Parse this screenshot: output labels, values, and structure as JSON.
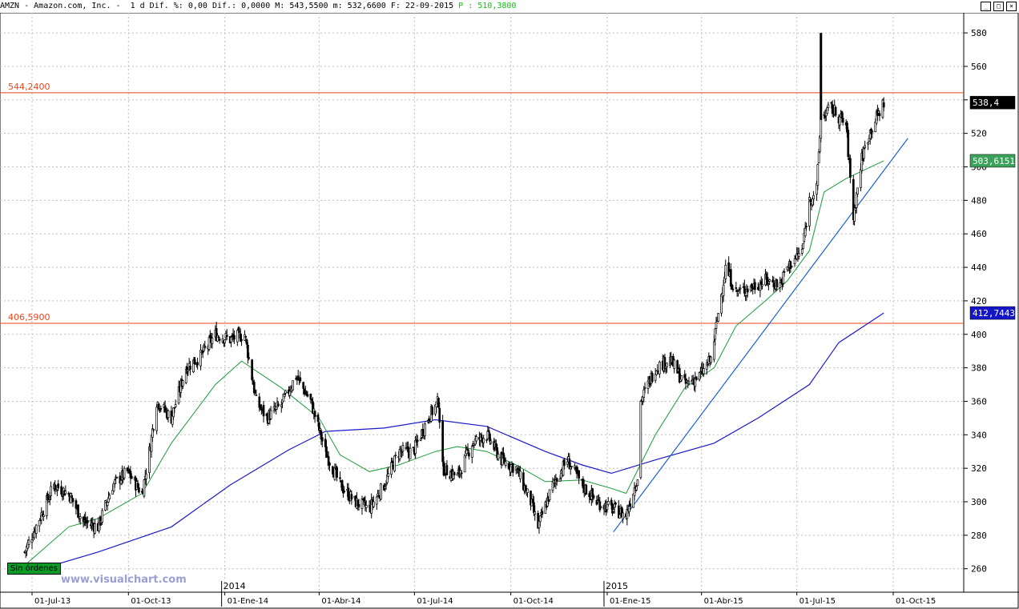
{
  "header": {
    "symbol": "AMZN",
    "name": "Amazon.com, Inc.",
    "period": "1 d",
    "dif_pct_label": "Dif. %:",
    "dif_pct": "0,00",
    "dif_label": "Dif.:",
    "dif": "0,0000",
    "max_label": "M:",
    "max": "543,5500",
    "min_label": "m:",
    "min": "532,6600",
    "date_label": "F:",
    "date": "22-09-2015",
    "price_label": "P :",
    "price": "510,3800"
  },
  "watermark": "www.visualchart.com",
  "order_status": "Sin órdenes",
  "colors": {
    "candles": "#000000",
    "ma_short": "#1a9b3a",
    "ma_long": "#1a1acd",
    "trendline": "#1a5fd6",
    "hline": "#e8461e",
    "grid": "#bfbfbf",
    "badge_last": "#000000",
    "badge_ma_short": "#3aa25a",
    "badge_ma_long": "#1414c8",
    "header_price": "#00cc00"
  },
  "chart_data": {
    "type": "candlestick",
    "x_ticks": [
      "01-Jul-13",
      "01-Oct-13",
      "01-Ene-14",
      "01-Abr-14",
      "01-Jul-14",
      "01-Oct-14",
      "01-Ene-15",
      "01-Abr-15",
      "01-Jul-15",
      "01-Oct-15"
    ],
    "year_markers": [
      "2014",
      "2015"
    ],
    "y_ticks": [
      260,
      280,
      300,
      320,
      340,
      360,
      380,
      400,
      420,
      440,
      460,
      480,
      500,
      520,
      540,
      560,
      580
    ],
    "ylim": [
      246,
      592
    ],
    "grid": true,
    "horizontal_lines": [
      {
        "label": "544,2400",
        "value": 544.24
      },
      {
        "label": "406,5900",
        "value": 406.59
      }
    ],
    "badges": [
      {
        "label": "538,4",
        "value": 538.4,
        "kind": "last"
      },
      {
        "label": "503,6151",
        "value": 503.6151,
        "kind": "ma_short"
      },
      {
        "label": "412,7443",
        "value": 412.7443,
        "kind": "ma_long"
      }
    ],
    "price_path": [
      [
        "2013-06-24",
        270
      ],
      [
        "2013-07-08",
        290
      ],
      [
        "2013-07-22",
        310
      ],
      [
        "2013-08-05",
        305
      ],
      [
        "2013-08-19",
        288
      ],
      [
        "2013-09-02",
        285
      ],
      [
        "2013-09-16",
        310
      ],
      [
        "2013-09-30",
        318
      ],
      [
        "2013-10-14",
        305
      ],
      [
        "2013-10-21",
        330
      ],
      [
        "2013-10-28",
        360
      ],
      [
        "2013-11-11",
        350
      ],
      [
        "2013-11-25",
        380
      ],
      [
        "2013-12-09",
        387
      ],
      [
        "2013-12-23",
        400
      ],
      [
        "2014-01-06",
        397
      ],
      [
        "2014-01-20",
        400
      ],
      [
        "2014-01-31",
        360
      ],
      [
        "2014-02-10",
        350
      ],
      [
        "2014-02-24",
        358
      ],
      [
        "2014-03-10",
        375
      ],
      [
        "2014-03-24",
        360
      ],
      [
        "2014-04-07",
        330
      ],
      [
        "2014-04-21",
        310
      ],
      [
        "2014-05-05",
        300
      ],
      [
        "2014-05-19",
        296
      ],
      [
        "2014-06-02",
        310
      ],
      [
        "2014-06-16",
        330
      ],
      [
        "2014-06-30",
        330
      ],
      [
        "2014-07-14",
        350
      ],
      [
        "2014-07-24",
        360
      ],
      [
        "2014-07-28",
        320
      ],
      [
        "2014-08-11",
        315
      ],
      [
        "2014-08-25",
        335
      ],
      [
        "2014-09-08",
        340
      ],
      [
        "2014-09-22",
        325
      ],
      [
        "2014-10-06",
        320
      ],
      [
        "2014-10-20",
        300
      ],
      [
        "2014-10-27",
        285
      ],
      [
        "2014-11-10",
        310
      ],
      [
        "2014-11-24",
        325
      ],
      [
        "2014-12-08",
        310
      ],
      [
        "2014-12-22",
        300
      ],
      [
        "2015-01-05",
        296
      ],
      [
        "2015-01-19",
        292
      ],
      [
        "2015-01-30",
        315
      ],
      [
        "2015-02-02",
        360
      ],
      [
        "2015-02-16",
        380
      ],
      [
        "2015-03-02",
        385
      ],
      [
        "2015-03-16",
        370
      ],
      [
        "2015-03-30",
        375
      ],
      [
        "2015-04-10",
        385
      ],
      [
        "2015-04-24",
        440
      ],
      [
        "2015-05-04",
        425
      ],
      [
        "2015-05-18",
        428
      ],
      [
        "2015-06-01",
        432
      ],
      [
        "2015-06-15",
        430
      ],
      [
        "2015-06-22",
        440
      ],
      [
        "2015-07-06",
        450
      ],
      [
        "2015-07-13",
        480
      ],
      [
        "2015-07-20",
        487
      ],
      [
        "2015-07-24",
        530
      ],
      [
        "2015-08-03",
        535
      ],
      [
        "2015-08-17",
        525
      ],
      [
        "2015-08-24",
        470
      ],
      [
        "2015-09-01",
        505
      ],
      [
        "2015-09-08",
        520
      ],
      [
        "2015-09-22",
        538.4
      ]
    ],
    "ma_short_path": [
      [
        "2013-06-24",
        262
      ],
      [
        "2013-08-05",
        285
      ],
      [
        "2013-09-02",
        290
      ],
      [
        "2013-10-14",
        305
      ],
      [
        "2013-11-11",
        335
      ],
      [
        "2013-12-23",
        370
      ],
      [
        "2014-01-17",
        384
      ],
      [
        "2014-02-24",
        368
      ],
      [
        "2014-04-01",
        350
      ],
      [
        "2014-04-21",
        328
      ],
      [
        "2014-05-19",
        318
      ],
      [
        "2014-06-16",
        322
      ],
      [
        "2014-07-21",
        330
      ],
      [
        "2014-08-11",
        333
      ],
      [
        "2014-09-08",
        330
      ],
      [
        "2014-10-06",
        322
      ],
      [
        "2014-11-03",
        312
      ],
      [
        "2014-12-08",
        313
      ],
      [
        "2015-01-05",
        308
      ],
      [
        "2015-01-19",
        305
      ],
      [
        "2015-02-16",
        340
      ],
      [
        "2015-03-16",
        368
      ],
      [
        "2015-04-13",
        380
      ],
      [
        "2015-05-04",
        405
      ],
      [
        "2015-06-01",
        420
      ],
      [
        "2015-06-22",
        432
      ],
      [
        "2015-07-13",
        450
      ],
      [
        "2015-07-27",
        485
      ],
      [
        "2015-08-17",
        493
      ],
      [
        "2015-09-22",
        503.6151
      ]
    ],
    "ma_long_path": [
      [
        "2013-06-24",
        257
      ],
      [
        "2013-09-02",
        270
      ],
      [
        "2013-11-11",
        285
      ],
      [
        "2014-01-06",
        310
      ],
      [
        "2014-03-03",
        331
      ],
      [
        "2014-04-07",
        342
      ],
      [
        "2014-06-02",
        344
      ],
      [
        "2014-07-21",
        349
      ],
      [
        "2014-09-08",
        345
      ],
      [
        "2014-11-03",
        330
      ],
      [
        "2014-12-08",
        322
      ],
      [
        "2015-01-05",
        317
      ],
      [
        "2015-02-16",
        325
      ],
      [
        "2015-04-13",
        335
      ],
      [
        "2015-05-25",
        350
      ],
      [
        "2015-07-13",
        370
      ],
      [
        "2015-08-10",
        395
      ],
      [
        "2015-09-22",
        412.7443
      ]
    ],
    "trendline": [
      [
        "2015-01-07",
        282
      ],
      [
        "2015-10-15",
        517
      ]
    ]
  }
}
